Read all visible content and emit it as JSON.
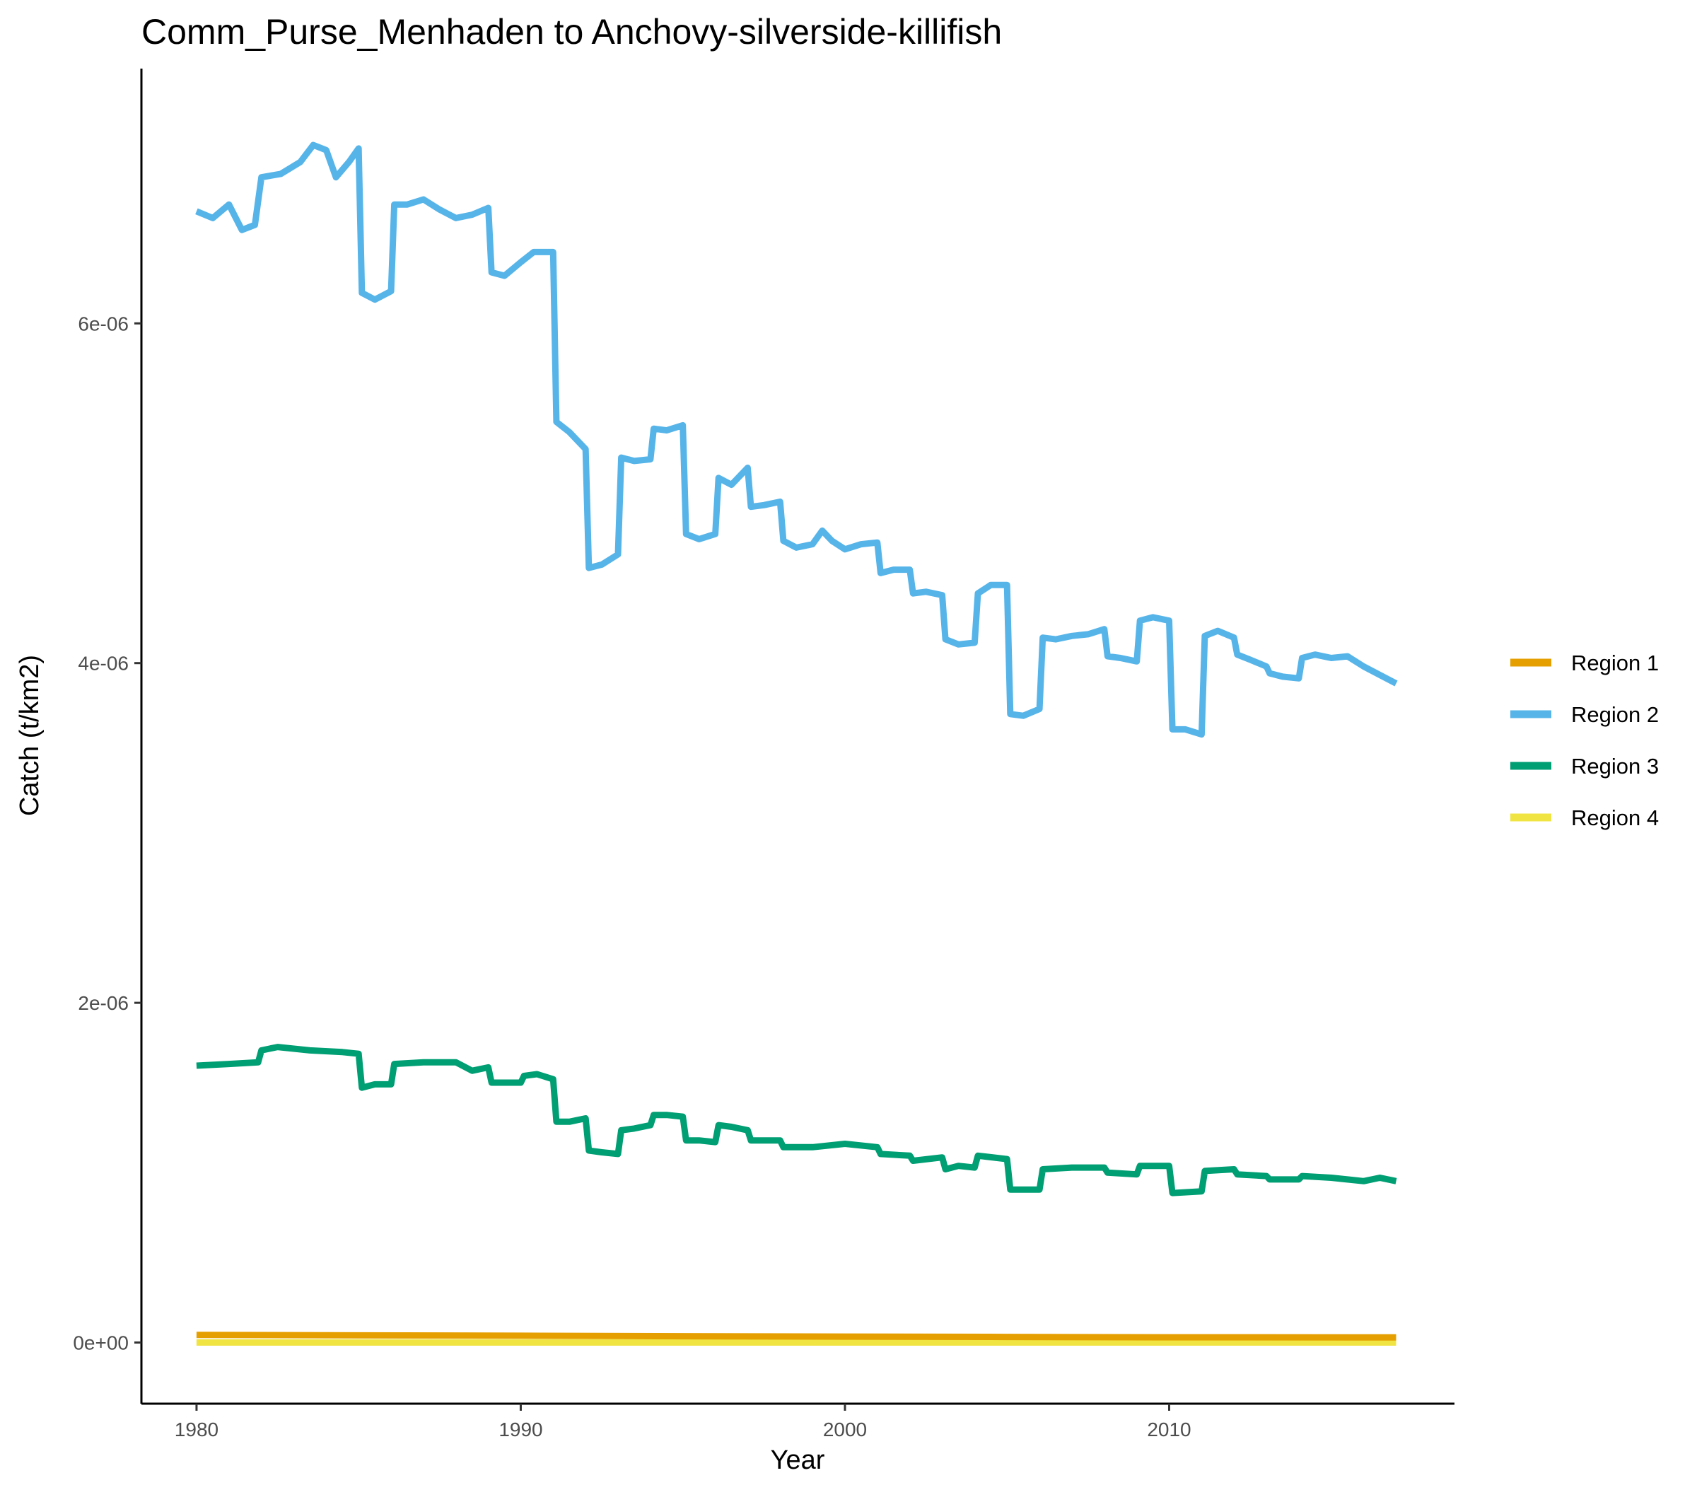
{
  "chart_data": {
    "type": "line",
    "title": "Comm_Purse_Menhaden to Anchovy-silverside-killifish",
    "xlabel": "Year",
    "ylabel": "Catch (t/km2)",
    "xlim": [
      1978.3,
      2018.8
    ],
    "ylim": [
      -3.6e-07,
      7.5e-06
    ],
    "x_ticks": [
      1980,
      1990,
      2000,
      2010
    ],
    "x_tick_labels": [
      "1980",
      "1990",
      "2000",
      "2010"
    ],
    "y_ticks": [
      0,
      2e-06,
      4e-06,
      6e-06
    ],
    "y_tick_labels": [
      "0e+00",
      "2e-06",
      "4e-06",
      "6e-06"
    ],
    "grid": false,
    "legend_position": "right",
    "series": [
      {
        "name": "Region 1",
        "color": "#E69F00",
        "points": [
          [
            1980.0,
            4.5e-08
          ],
          [
            1985.0,
            4.2e-08
          ],
          [
            1990.0,
            4e-08
          ],
          [
            1995.0,
            3.7e-08
          ],
          [
            2000.0,
            3.5e-08
          ],
          [
            2005.0,
            3.3e-08
          ],
          [
            2010.0,
            3.1e-08
          ],
          [
            2017.0,
            3e-08
          ]
        ]
      },
      {
        "name": "Region 2",
        "color": "#56B4E9",
        "points": [
          [
            1980.0,
            6.66e-06
          ],
          [
            1980.5,
            6.62e-06
          ],
          [
            1981.0,
            6.7e-06
          ],
          [
            1981.4,
            6.55e-06
          ],
          [
            1981.8,
            6.58e-06
          ],
          [
            1982.0,
            6.86e-06
          ],
          [
            1982.6,
            6.88e-06
          ],
          [
            1983.2,
            6.95e-06
          ],
          [
            1983.6,
            7.05e-06
          ],
          [
            1984.0,
            7.02e-06
          ],
          [
            1984.3,
            6.86e-06
          ],
          [
            1984.7,
            6.95e-06
          ],
          [
            1985.0,
            7.03e-06
          ],
          [
            1985.1,
            6.18e-06
          ],
          [
            1985.5,
            6.14e-06
          ],
          [
            1986.0,
            6.19e-06
          ],
          [
            1986.1,
            6.7e-06
          ],
          [
            1986.5,
            6.7e-06
          ],
          [
            1987.0,
            6.73e-06
          ],
          [
            1987.5,
            6.67e-06
          ],
          [
            1988.0,
            6.62e-06
          ],
          [
            1988.5,
            6.64e-06
          ],
          [
            1989.0,
            6.68e-06
          ],
          [
            1989.1,
            6.3e-06
          ],
          [
            1989.5,
            6.28e-06
          ],
          [
            1990.0,
            6.36e-06
          ],
          [
            1990.4,
            6.42e-06
          ],
          [
            1991.0,
            6.42e-06
          ],
          [
            1991.1,
            5.42e-06
          ],
          [
            1991.5,
            5.36e-06
          ],
          [
            1992.0,
            5.26e-06
          ],
          [
            1992.1,
            4.56e-06
          ],
          [
            1992.5,
            4.58e-06
          ],
          [
            1993.0,
            4.64e-06
          ],
          [
            1993.1,
            5.21e-06
          ],
          [
            1993.5,
            5.19e-06
          ],
          [
            1994.0,
            5.2e-06
          ],
          [
            1994.1,
            5.38e-06
          ],
          [
            1994.5,
            5.37e-06
          ],
          [
            1995.0,
            5.4e-06
          ],
          [
            1995.1,
            4.76e-06
          ],
          [
            1995.5,
            4.73e-06
          ],
          [
            1996.0,
            4.76e-06
          ],
          [
            1996.1,
            5.09e-06
          ],
          [
            1996.5,
            5.05e-06
          ],
          [
            1997.0,
            5.15e-06
          ],
          [
            1997.1,
            4.92e-06
          ],
          [
            1997.5,
            4.93e-06
          ],
          [
            1998.0,
            4.95e-06
          ],
          [
            1998.1,
            4.72e-06
          ],
          [
            1998.5,
            4.68e-06
          ],
          [
            1999.0,
            4.7e-06
          ],
          [
            1999.3,
            4.78e-06
          ],
          [
            1999.6,
            4.72e-06
          ],
          [
            2000.0,
            4.67e-06
          ],
          [
            2000.5,
            4.7e-06
          ],
          [
            2001.0,
            4.71e-06
          ],
          [
            2001.1,
            4.53e-06
          ],
          [
            2001.5,
            4.55e-06
          ],
          [
            2002.0,
            4.55e-06
          ],
          [
            2002.1,
            4.41e-06
          ],
          [
            2002.5,
            4.42e-06
          ],
          [
            2003.0,
            4.4e-06
          ],
          [
            2003.1,
            4.14e-06
          ],
          [
            2003.5,
            4.11e-06
          ],
          [
            2004.0,
            4.12e-06
          ],
          [
            2004.1,
            4.41e-06
          ],
          [
            2004.5,
            4.46e-06
          ],
          [
            2005.0,
            4.46e-06
          ],
          [
            2005.1,
            3.7e-06
          ],
          [
            2005.5,
            3.69e-06
          ],
          [
            2006.0,
            3.73e-06
          ],
          [
            2006.1,
            4.15e-06
          ],
          [
            2006.5,
            4.14e-06
          ],
          [
            2007.0,
            4.16e-06
          ],
          [
            2007.5,
            4.17e-06
          ],
          [
            2008.0,
            4.2e-06
          ],
          [
            2008.1,
            4.04e-06
          ],
          [
            2008.5,
            4.03e-06
          ],
          [
            2009.0,
            4.01e-06
          ],
          [
            2009.1,
            4.25e-06
          ],
          [
            2009.5,
            4.27e-06
          ],
          [
            2010.0,
            4.25e-06
          ],
          [
            2010.1,
            3.61e-06
          ],
          [
            2010.5,
            3.61e-06
          ],
          [
            2011.0,
            3.58e-06
          ],
          [
            2011.1,
            4.16e-06
          ],
          [
            2011.5,
            4.19e-06
          ],
          [
            2012.0,
            4.15e-06
          ],
          [
            2012.1,
            4.05e-06
          ],
          [
            2012.5,
            4.02e-06
          ],
          [
            2013.0,
            3.98e-06
          ],
          [
            2013.1,
            3.94e-06
          ],
          [
            2013.5,
            3.92e-06
          ],
          [
            2014.0,
            3.91e-06
          ],
          [
            2014.1,
            4.03e-06
          ],
          [
            2014.5,
            4.05e-06
          ],
          [
            2015.0,
            4.03e-06
          ],
          [
            2015.5,
            4.04e-06
          ],
          [
            2016.0,
            3.98e-06
          ],
          [
            2016.5,
            3.93e-06
          ],
          [
            2017.0,
            3.88e-06
          ]
        ]
      },
      {
        "name": "Region 3",
        "color": "#009E73",
        "points": [
          [
            1980.0,
            1.63e-06
          ],
          [
            1981.0,
            1.64e-06
          ],
          [
            1981.9,
            1.65e-06
          ],
          [
            1982.0,
            1.72e-06
          ],
          [
            1982.5,
            1.74e-06
          ],
          [
            1983.5,
            1.72e-06
          ],
          [
            1984.5,
            1.71e-06
          ],
          [
            1985.0,
            1.7e-06
          ],
          [
            1985.1,
            1.5e-06
          ],
          [
            1985.5,
            1.52e-06
          ],
          [
            1986.0,
            1.52e-06
          ],
          [
            1986.1,
            1.64e-06
          ],
          [
            1987.0,
            1.65e-06
          ],
          [
            1988.0,
            1.65e-06
          ],
          [
            1988.5,
            1.6e-06
          ],
          [
            1989.0,
            1.62e-06
          ],
          [
            1989.1,
            1.53e-06
          ],
          [
            1990.0,
            1.53e-06
          ],
          [
            1990.1,
            1.57e-06
          ],
          [
            1990.5,
            1.58e-06
          ],
          [
            1991.0,
            1.55e-06
          ],
          [
            1991.1,
            1.3e-06
          ],
          [
            1991.5,
            1.3e-06
          ],
          [
            1992.0,
            1.32e-06
          ],
          [
            1992.1,
            1.13e-06
          ],
          [
            1992.5,
            1.12e-06
          ],
          [
            1993.0,
            1.11e-06
          ],
          [
            1993.1,
            1.25e-06
          ],
          [
            1993.5,
            1.26e-06
          ],
          [
            1994.0,
            1.28e-06
          ],
          [
            1994.1,
            1.34e-06
          ],
          [
            1994.5,
            1.34e-06
          ],
          [
            1995.0,
            1.33e-06
          ],
          [
            1995.1,
            1.19e-06
          ],
          [
            1995.5,
            1.19e-06
          ],
          [
            1996.0,
            1.18e-06
          ],
          [
            1996.1,
            1.28e-06
          ],
          [
            1996.5,
            1.27e-06
          ],
          [
            1997.0,
            1.25e-06
          ],
          [
            1997.1,
            1.19e-06
          ],
          [
            1998.0,
            1.19e-06
          ],
          [
            1998.1,
            1.15e-06
          ],
          [
            1999.0,
            1.15e-06
          ],
          [
            2000.0,
            1.17e-06
          ],
          [
            2001.0,
            1.15e-06
          ],
          [
            2001.1,
            1.11e-06
          ],
          [
            2002.0,
            1.1e-06
          ],
          [
            2002.1,
            1.07e-06
          ],
          [
            2003.0,
            1.09e-06
          ],
          [
            2003.1,
            1.02e-06
          ],
          [
            2003.5,
            1.04e-06
          ],
          [
            2004.0,
            1.03e-06
          ],
          [
            2004.1,
            1.1e-06
          ],
          [
            2005.0,
            1.08e-06
          ],
          [
            2005.1,
            9e-07
          ],
          [
            2006.0,
            9e-07
          ],
          [
            2006.1,
            1.02e-06
          ],
          [
            2007.0,
            1.03e-06
          ],
          [
            2008.0,
            1.03e-06
          ],
          [
            2008.1,
            1e-06
          ],
          [
            2009.0,
            9.9e-07
          ],
          [
            2009.1,
            1.04e-06
          ],
          [
            2010.0,
            1.04e-06
          ],
          [
            2010.1,
            8.8e-07
          ],
          [
            2011.0,
            8.9e-07
          ],
          [
            2011.1,
            1.01e-06
          ],
          [
            2012.0,
            1.02e-06
          ],
          [
            2012.1,
            9.9e-07
          ],
          [
            2013.0,
            9.8e-07
          ],
          [
            2013.1,
            9.6e-07
          ],
          [
            2014.0,
            9.6e-07
          ],
          [
            2014.1,
            9.8e-07
          ],
          [
            2015.0,
            9.7e-07
          ],
          [
            2016.0,
            9.5e-07
          ],
          [
            2016.5,
            9.7e-07
          ],
          [
            2017.0,
            9.5e-07
          ]
        ]
      },
      {
        "name": "Region 4",
        "color": "#F0E442",
        "points": [
          [
            1980.0,
            0.0
          ],
          [
            1990.0,
            0.0
          ],
          [
            2000.0,
            0.0
          ],
          [
            2010.0,
            0.0
          ],
          [
            2017.0,
            0.0
          ]
        ]
      }
    ]
  }
}
